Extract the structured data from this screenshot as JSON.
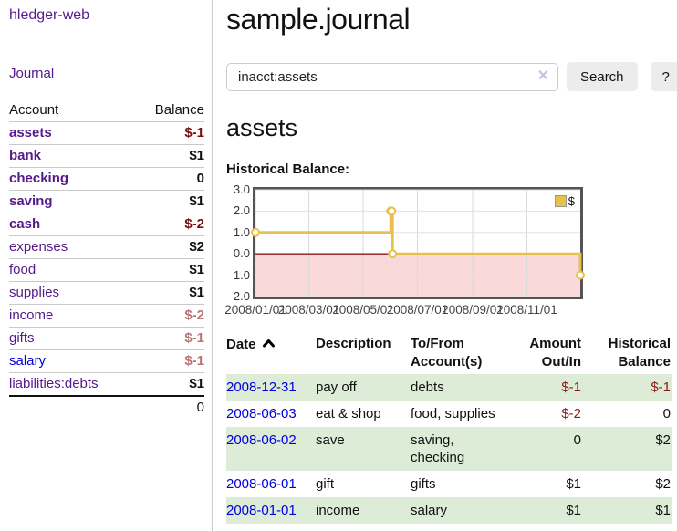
{
  "sidebar": {
    "title": "hledger-web",
    "nav": {
      "journal": "Journal"
    },
    "accounts_table": {
      "headers": {
        "account": "Account",
        "balance": "Balance"
      },
      "rows": [
        {
          "name": "assets",
          "balance": "$-1",
          "indent": 0,
          "bold": true,
          "name_color": "purple",
          "balance_color": "negative"
        },
        {
          "name": "bank",
          "balance": "$1",
          "indent": 1,
          "bold": true,
          "name_color": "purple",
          "balance_color": "normal"
        },
        {
          "name": "checking",
          "balance": "0",
          "indent": 2,
          "bold": true,
          "name_color": "purple",
          "balance_color": "normal"
        },
        {
          "name": "saving",
          "balance": "$1",
          "indent": 2,
          "bold": true,
          "name_color": "purple",
          "balance_color": "normal"
        },
        {
          "name": "cash",
          "balance": "$-2",
          "indent": 1,
          "bold": true,
          "name_color": "purple",
          "balance_color": "negative"
        },
        {
          "name": "expenses",
          "balance": "$2",
          "indent": 0,
          "bold": false,
          "name_color": "purple",
          "balance_color": "normal"
        },
        {
          "name": "food",
          "balance": "$1",
          "indent": 1,
          "bold": false,
          "name_color": "purple",
          "balance_color": "normal"
        },
        {
          "name": "supplies",
          "balance": "$1",
          "indent": 1,
          "bold": false,
          "name_color": "purple",
          "balance_color": "normal"
        },
        {
          "name": "income",
          "balance": "$-2",
          "indent": 0,
          "bold": false,
          "name_color": "purple",
          "balance_color": "negative-soft"
        },
        {
          "name": "gifts",
          "balance": "$-1",
          "indent": 1,
          "bold": false,
          "name_color": "purple",
          "balance_color": "negative-soft"
        },
        {
          "name": "salary",
          "balance": "$-1",
          "indent": 1,
          "bold": false,
          "name_color": "blue",
          "balance_color": "negative-soft"
        },
        {
          "name": "liabilities:debts",
          "balance": "$1",
          "indent": 0,
          "bold": false,
          "name_color": "purple",
          "balance_color": "normal"
        }
      ],
      "total": "0"
    }
  },
  "main": {
    "title": "sample.journal",
    "search": {
      "value": "inacct:assets",
      "clear_label": "✕",
      "search_button": "Search",
      "help_button": "?"
    },
    "account_heading": "assets",
    "chart_heading": "Historical Balance:"
  },
  "chart_data": {
    "type": "line",
    "step": true,
    "title": "Historical Balance",
    "legend": "$",
    "legend_position": "top-right",
    "grid": true,
    "series": [
      {
        "name": "$",
        "color": "#e8c04a",
        "points": [
          {
            "date": "2008-01-01",
            "value": 1
          },
          {
            "date": "2008-06-01",
            "value": 2
          },
          {
            "date": "2008-06-02",
            "value": 2
          },
          {
            "date": "2008-06-03",
            "value": 0
          },
          {
            "date": "2008-12-31",
            "value": -1
          }
        ]
      }
    ],
    "x_range": [
      "2008-01-01",
      "2008-12-31"
    ],
    "x_tick_labels": [
      "2008/01/01",
      "2008/03/01",
      "2008/05/01",
      "2008/07/01",
      "2008/09/01",
      "2008/11/01"
    ],
    "y_ticks": [
      "3.0",
      "2.0",
      "1.0",
      "0.0",
      "-1.0",
      "-2.0"
    ],
    "ylim": [
      -2,
      3
    ],
    "negative_fill": "#f9d9d9",
    "zero_line_color": "#8c1717"
  },
  "register": {
    "headers": {
      "date": "Date",
      "description": "Description",
      "accounts": "To/From Account(s)",
      "amount": "Amount Out/In",
      "balance": "Historical Balance"
    },
    "rows": [
      {
        "date": "2008-12-31",
        "description": "pay off",
        "accounts": "debts",
        "amount": "$-1",
        "amount_negative": true,
        "balance": "$-1",
        "balance_negative": true,
        "shaded": true
      },
      {
        "date": "2008-06-03",
        "description": "eat & shop",
        "accounts": "food, supplies",
        "amount": "$-2",
        "amount_negative": true,
        "balance": "0",
        "balance_negative": false,
        "shaded": false
      },
      {
        "date": "2008-06-02",
        "description": "save",
        "accounts": "saving, checking",
        "amount": "0",
        "amount_negative": false,
        "balance": "$2",
        "balance_negative": false,
        "shaded": true
      },
      {
        "date": "2008-06-01",
        "description": "gift",
        "accounts": "gifts",
        "amount": "$1",
        "amount_negative": false,
        "balance": "$2",
        "balance_negative": false,
        "shaded": false
      },
      {
        "date": "2008-01-01",
        "description": "income",
        "accounts": "salary",
        "amount": "$1",
        "amount_negative": false,
        "balance": "$1",
        "balance_negative": false,
        "shaded": true
      }
    ]
  }
}
